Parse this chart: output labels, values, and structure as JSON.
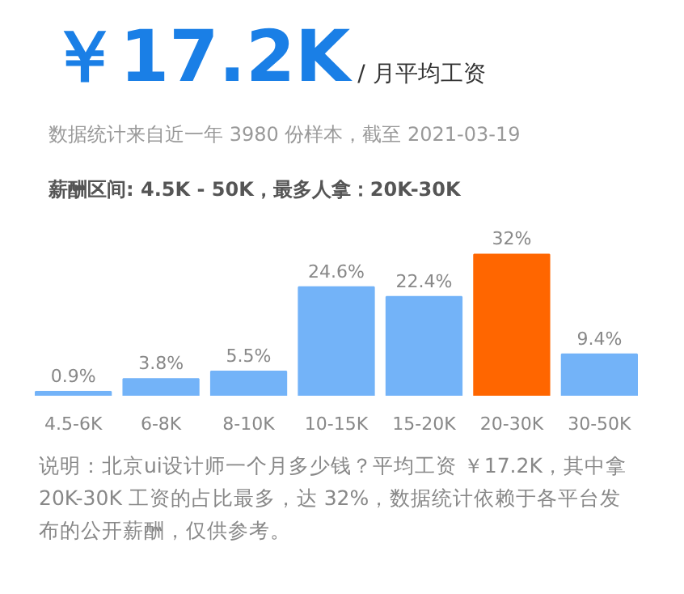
{
  "chart_data": {
    "type": "bar",
    "title": "￥17.2K",
    "subtitle": "/ 月平均工资",
    "annotations": [
      "数据统计来自近一年 3980 份样本，截至 2021-03-19",
      "薪酬区间: 4.5K - 50K，最多人拿：20K-30K",
      "说明：北京ui设计师一个月多少钱？平均工资 ￥17.2K，其中拿 20K-30K 工资的占比最多，达 32%，数据统计依赖于各平台发布的公开薪酬，仅供参考。"
    ],
    "categories": [
      "4.5-6K",
      "6-8K",
      "8-10K",
      "10-15K",
      "15-20K",
      "20-30K",
      "30-50K"
    ],
    "values": [
      0.9,
      3.8,
      5.5,
      24.6,
      22.4,
      32,
      9.4
    ],
    "value_labels": [
      "0.9%",
      "3.8%",
      "5.5%",
      "24.6%",
      "22.4%",
      "32%",
      "9.4%"
    ],
    "colors": [
      "#73b3f8",
      "#73b3f8",
      "#73b3f8",
      "#73b3f8",
      "#73b3f8",
      "#ff6600",
      "#73b3f8"
    ],
    "grid": false
  }
}
